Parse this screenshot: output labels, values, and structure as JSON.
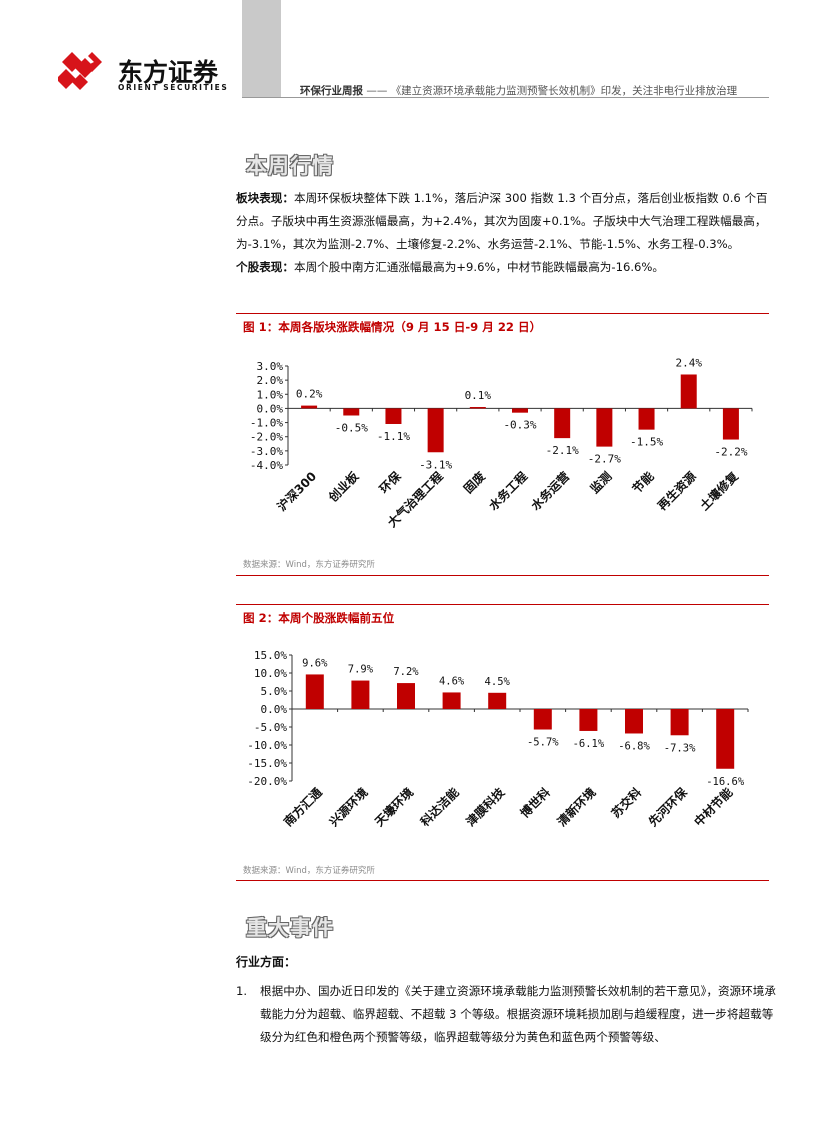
{
  "header": {
    "company_cn": "东方证券",
    "company_en": "ORIENT SECURITIES",
    "report_type": "环保行业周报",
    "separator": "——",
    "report_title": "《建立资源环境承载能力监测预警长效机制》印发，关注非电行业排放治理"
  },
  "section1": {
    "heading": "本周行情"
  },
  "sector_para": {
    "label": "板块表现：",
    "text": "本周环保板块整体下跌 1.1%，落后沪深 300 指数 1.3 个百分点，落后创业板指数 0.6 个百分点。子版块中再生资源涨幅最高，为+2.4%，其次为固废+0.1%。子版块中大气治理工程跌幅最高，为-3.1%，其次为监测-2.7%、土壤修复-2.2%、水务运营-2.1%、节能-1.5%、水务工程-0.3%。"
  },
  "stock_para": {
    "label": "个股表现：",
    "text": "本周个股中南方汇通涨幅最高为+9.6%，中材节能跌幅最高为-16.6%。"
  },
  "figure1": {
    "title": "图 1：本周各版块涨跌幅情况（9 月 15 日-9 月 22 日）",
    "source": "数据来源：Wind，东方证券研究所"
  },
  "figure2": {
    "title": "图 2：本周个股涨跌幅前五位",
    "source": "数据来源：Wind，东方证券研究所"
  },
  "chart_data": [
    {
      "type": "bar",
      "title": "图 1：本周各版块涨跌幅情况（9 月 15 日-9 月 22 日）",
      "categories": [
        "沪深300",
        "创业板",
        "环保",
        "大气治理工程",
        "固废",
        "水务工程",
        "水务运营",
        "监测",
        "节能",
        "再生资源",
        "土壤修复"
      ],
      "values": [
        0.2,
        -0.5,
        -1.1,
        -3.1,
        0.1,
        -0.3,
        -2.1,
        -2.7,
        -1.5,
        2.4,
        -2.2
      ],
      "data_labels": [
        "0.2%",
        "-0.5%",
        "-1.1%",
        "-3.1%",
        "0.1%",
        "-0.3%",
        "-2.1%",
        "-2.7%",
        "-1.5%",
        "2.4%",
        "-2.2%"
      ],
      "yticks": [
        "3.0%",
        "2.0%",
        "1.0%",
        "0.0%",
        "-1.0%",
        "-2.0%",
        "-3.0%",
        "-4.0%"
      ],
      "ylim": [
        -4,
        3
      ],
      "color": "#c00000",
      "grid": false
    },
    {
      "type": "bar",
      "title": "图 2：本周个股涨跌幅前五位",
      "categories": [
        "南方汇通",
        "兴源环境",
        "天壕环境",
        "科达洁能",
        "津膜科技",
        "博世科",
        "清新环境",
        "苏交科",
        "先河环保",
        "中材节能"
      ],
      "values": [
        9.6,
        7.9,
        7.2,
        4.6,
        4.5,
        -5.7,
        -6.1,
        -6.8,
        -7.3,
        -16.6
      ],
      "data_labels": [
        "9.6%",
        "7.9%",
        "7.2%",
        "4.6%",
        "4.5%",
        "-5.7%",
        "-6.1%",
        "-6.8%",
        "-7.3%",
        "-16.6%"
      ],
      "yticks": [
        "15.0%",
        "10.0%",
        "5.0%",
        "0.0%",
        "-5.0%",
        "-10.0%",
        "-15.0%",
        "-20.0%"
      ],
      "ylim": [
        -20,
        15
      ],
      "color": "#c00000",
      "grid": false
    }
  ],
  "section2": {
    "heading": "重大事件"
  },
  "industry": {
    "label": "行业方面：",
    "item1_num": "1.",
    "item1_text": "根据中办、国办近日印发的《关于建立资源环境承载能力监测预警长效机制的若干意见》，资源环境承载能力分为超载、临界超载、不超载 3 个等级。根据资源环境耗损加剧与趋缓程度，进一步将超载等级分为红色和橙色两个预警等级，临界超载等级分为黄色和蓝色两个预警等级、"
  }
}
